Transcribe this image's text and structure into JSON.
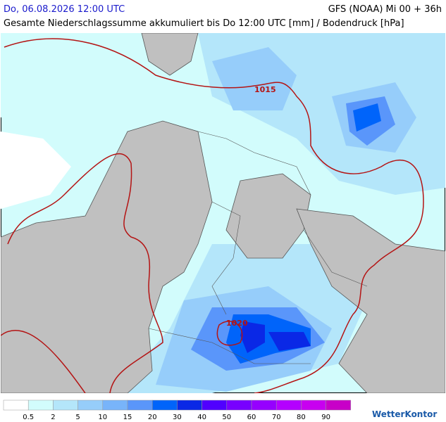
{
  "header": {
    "datetime": "Do, 06.08.2026 12:00 UTC",
    "model": "GFS (NOAA) Mi 00 + 36h",
    "subtitle": "Gesamte Niederschlagssumme akkumuliert bis Do 12:00 UTC [mm] / Bodendruck [hPa]"
  },
  "isobars": [
    {
      "label": "1015"
    },
    {
      "label": "1020"
    }
  ],
  "legend": {
    "levels": [
      0.5,
      2,
      5,
      10,
      15,
      20,
      30,
      40,
      50,
      60,
      70,
      80,
      90
    ],
    "colors": [
      "#ffffff",
      "#d2fcfc",
      "#b4e6fa",
      "#96cdfa",
      "#78b4fa",
      "#5a96fa",
      "#0064fa",
      "#0a28e6",
      "#5000ff",
      "#7800ff",
      "#9600ff",
      "#b400ff",
      "#c800f0",
      "#c800c8"
    ]
  },
  "logo": "WetterKontor"
}
